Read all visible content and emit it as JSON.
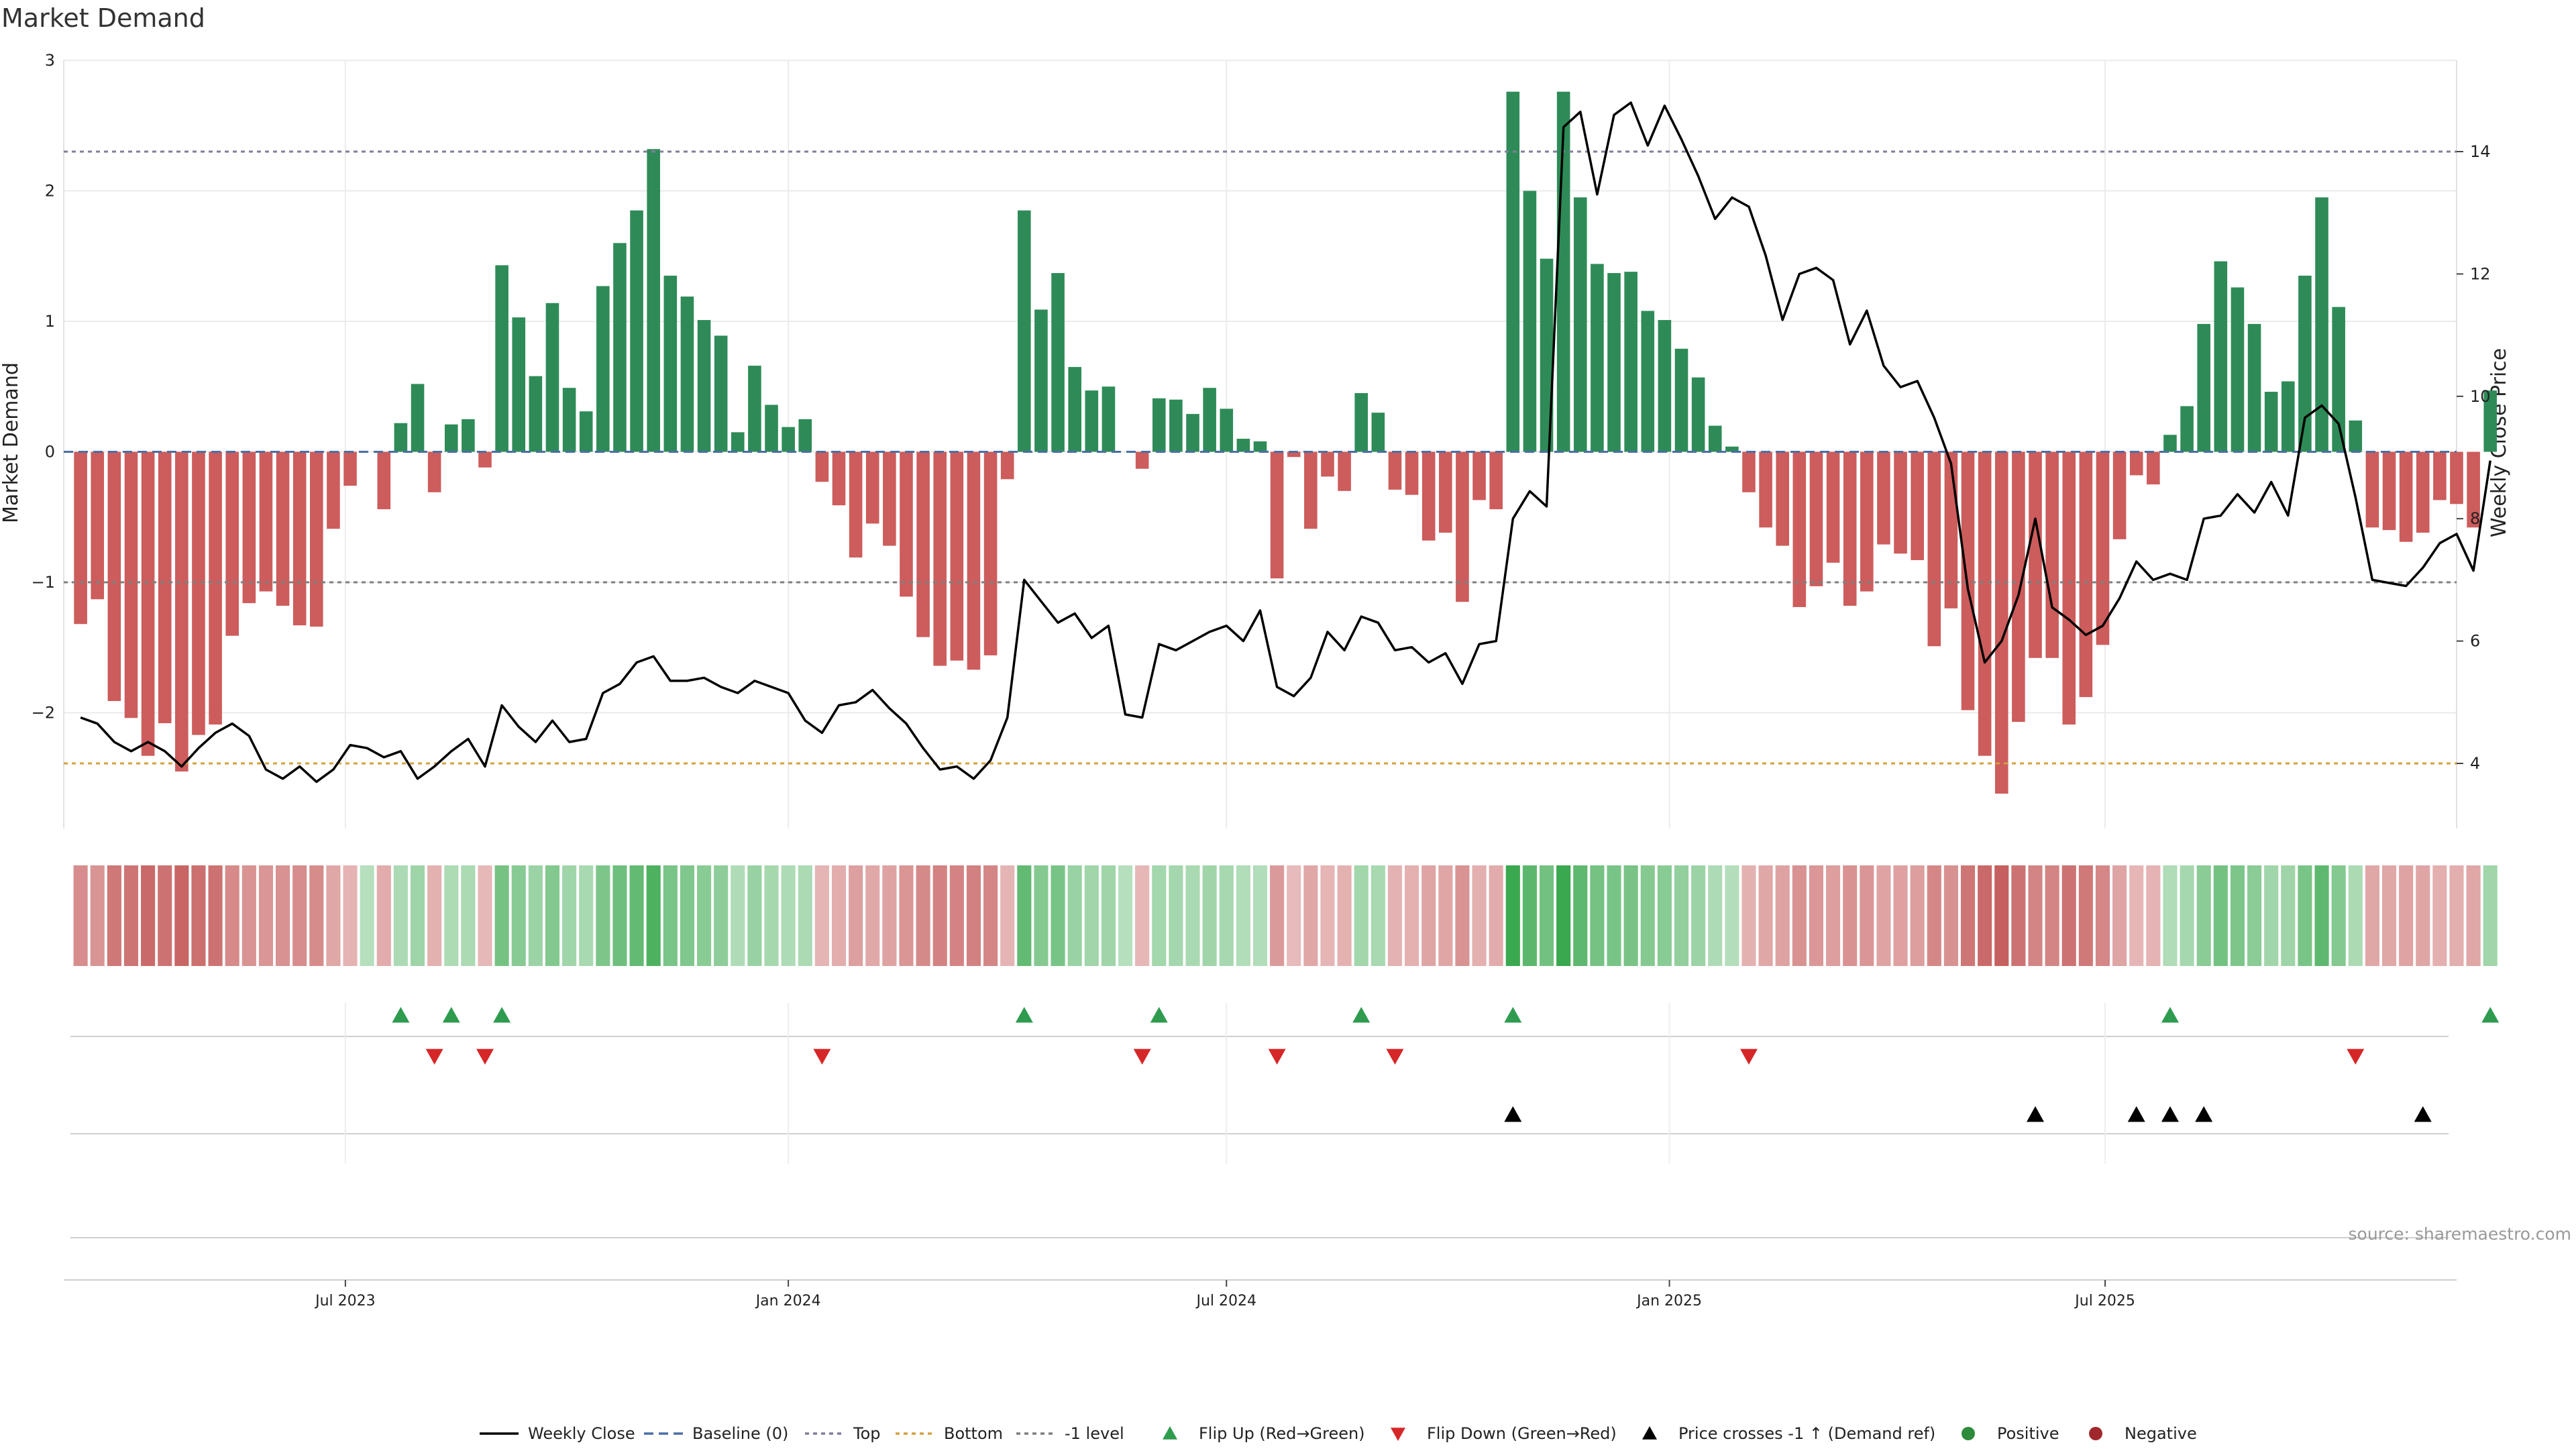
{
  "chart_data": {
    "type": "bar",
    "title": "Market Demand",
    "ylabel": "Market Demand",
    "y2label": "Weekly Close Price",
    "ylim": [
      -2.9,
      3.0
    ],
    "y2lim": [
      3.0,
      15.8
    ],
    "yticks": [
      {
        "v": 3,
        "label": "3"
      },
      {
        "v": 2,
        "label": "2"
      },
      {
        "v": 1,
        "label": "1"
      },
      {
        "v": 0,
        "label": "0"
      },
      {
        "v": -1,
        "label": "−1"
      },
      {
        "v": -2,
        "label": "−2"
      }
    ],
    "y2ticks": [
      {
        "v": 14,
        "label": "14"
      },
      {
        "v": 12,
        "label": "12"
      },
      {
        "v": 10,
        "label": "10"
      },
      {
        "v": 8,
        "label": "8"
      },
      {
        "v": 6,
        "label": "6"
      },
      {
        "v": 4,
        "label": "4"
      }
    ],
    "x_start": "2023-03-13",
    "x_step_days": 7,
    "x_range": [
      "2023-03-06",
      "2025-11-24"
    ],
    "date_ticks": [
      {
        "date": "2023-07-01",
        "label": "Jul 2023"
      },
      {
        "date": "2024-01-01",
        "label": "Jan 2024"
      },
      {
        "date": "2024-07-01",
        "label": "Jul 2024"
      },
      {
        "date": "2025-01-01",
        "label": "Jan 2025"
      },
      {
        "date": "2025-07-01",
        "label": "Jul 2025"
      }
    ],
    "demand": [
      -1.32,
      -1.13,
      -1.91,
      -2.04,
      -2.33,
      -2.08,
      -2.45,
      -2.17,
      -2.09,
      -1.41,
      -1.16,
      -1.07,
      -1.18,
      -1.33,
      -1.34,
      -0.59,
      -0.26,
      0,
      -0.44,
      0.22,
      0.52,
      -0.31,
      0.21,
      0.25,
      -0.12,
      1.43,
      1.03,
      0.58,
      1.14,
      0.49,
      0.31,
      1.27,
      1.6,
      1.85,
      2.32,
      1.35,
      1.19,
      1.01,
      0.89,
      0.15,
      0.66,
      0.36,
      0.19,
      0.25,
      -0.23,
      -0.41,
      -0.81,
      -0.55,
      -0.72,
      -1.11,
      -1.42,
      -1.64,
      -1.6,
      -1.67,
      -1.56,
      -0.21,
      1.85,
      1.09,
      1.37,
      0.65,
      0.47,
      0.5,
      0,
      -0.13,
      0.41,
      0.4,
      0.29,
      0.49,
      0.33,
      0.1,
      0.08,
      -0.97,
      -0.04,
      -0.59,
      -0.19,
      -0.3,
      0.45,
      0.3,
      -0.29,
      -0.33,
      -0.68,
      -0.62,
      -1.15,
      -0.37,
      -0.44,
      2.76,
      2.0,
      1.48,
      2.76,
      1.95,
      1.44,
      1.37,
      1.38,
      1.08,
      1.01,
      0.79,
      0.57,
      0.2,
      0.04,
      -0.31,
      -0.58,
      -0.72,
      -1.19,
      -1.03,
      -0.85,
      -1.18,
      -1.07,
      -0.71,
      -0.78,
      -0.83,
      -1.49,
      -1.2,
      -1.98,
      -2.33,
      -2.62,
      -2.07,
      -1.58,
      -1.58,
      -2.09,
      -1.88,
      -1.48,
      -0.67,
      -0.18,
      -0.25,
      0.13,
      0.35,
      0.98,
      1.46,
      1.26,
      0.98,
      0.46,
      0.54,
      1.35,
      1.95,
      1.11,
      0.24,
      -0.58,
      -0.6,
      -0.69,
      -0.62,
      -0.37,
      -0.4,
      -0.58,
      0.47
    ],
    "close": [
      4.75,
      4.65,
      4.35,
      4.2,
      4.35,
      4.2,
      3.95,
      4.25,
      4.5,
      4.65,
      4.45,
      3.9,
      3.75,
      3.95,
      3.7,
      3.9,
      4.3,
      4.25,
      4.1,
      4.2,
      3.75,
      3.95,
      4.2,
      4.4,
      3.95,
      4.95,
      4.6,
      4.35,
      4.7,
      4.35,
      4.4,
      5.15,
      5.3,
      5.65,
      5.75,
      5.35,
      5.35,
      5.4,
      5.25,
      5.15,
      5.35,
      5.25,
      5.15,
      4.7,
      4.5,
      4.95,
      5.0,
      5.2,
      4.9,
      4.65,
      4.25,
      3.9,
      3.95,
      3.75,
      4.05,
      4.75,
      7.0,
      6.65,
      6.3,
      6.45,
      6.05,
      6.25,
      4.8,
      4.75,
      5.95,
      5.85,
      6.0,
      6.15,
      6.25,
      6.0,
      6.5,
      5.25,
      5.1,
      5.4,
      6.15,
      5.85,
      6.4,
      6.3,
      5.85,
      5.9,
      5.65,
      5.8,
      5.3,
      5.95,
      6.0,
      8.0,
      8.45,
      8.2,
      14.4,
      14.65,
      13.3,
      14.6,
      14.8,
      14.1,
      14.75,
      14.2,
      13.6,
      12.9,
      13.25,
      13.1,
      12.3,
      11.25,
      12.0,
      12.1,
      11.9,
      10.85,
      11.4,
      10.5,
      10.15,
      10.25,
      9.65,
      8.9,
      6.85,
      5.65,
      6.0,
      6.75,
      8.0,
      6.55,
      6.35,
      6.1,
      6.25,
      6.7,
      7.3,
      7.0,
      7.1,
      7.0,
      8.0,
      8.05,
      8.4,
      8.1,
      8.6,
      8.05,
      9.65,
      9.85,
      9.55,
      8.35,
      7.0,
      6.95,
      6.9,
      7.2,
      7.6,
      7.75,
      7.15,
      8.95
    ],
    "levels": {
      "top": 14.0,
      "bottom": 4.0,
      "minus_one": -1.0,
      "baseline": 0
    },
    "flip_up_idx": [
      19,
      22,
      25,
      56,
      64,
      76,
      85,
      124,
      143
    ],
    "flip_down_idx": [
      21,
      24,
      44,
      63,
      71,
      78,
      99,
      135
    ],
    "cross_idx": [
      85,
      116,
      122,
      124,
      126,
      139
    ],
    "legend": [
      {
        "key": "close",
        "label": "Weekly Close",
        "style": "solid-line",
        "color": "#000000"
      },
      {
        "key": "baseline",
        "label": "Baseline (0)",
        "style": "dashed-line",
        "color": "#4a6fa5"
      },
      {
        "key": "top",
        "label": "Top",
        "style": "dotted-line",
        "color": "#7f7f9a"
      },
      {
        "key": "bottom",
        "label": "Bottom",
        "style": "dotted-line",
        "color": "#d4a040"
      },
      {
        "key": "minus1",
        "label": "-1 level",
        "style": "dotted-line",
        "color": "#7f7f7f"
      },
      {
        "key": "flipup",
        "label": "Flip Up (Red→Green)",
        "style": "triangle-up",
        "color": "#2e9b4f"
      },
      {
        "key": "flipdown",
        "label": "Flip Down (Green→Red)",
        "style": "triangle-down",
        "color": "#d62728"
      },
      {
        "key": "cross",
        "label": "Price crosses -1 ↑ (Demand ref)",
        "style": "triangle-up",
        "color": "#000000"
      },
      {
        "key": "positive",
        "label": "Positive",
        "style": "dot",
        "color": "#2e8b3a"
      },
      {
        "key": "negative",
        "label": "Negative",
        "style": "dot",
        "color": "#a0282c"
      }
    ],
    "colors": {
      "positive": "#2e8b57",
      "negative": "#cd5c5c",
      "grid": "#ebebeb"
    },
    "source": "source: sharemaestro.com"
  }
}
